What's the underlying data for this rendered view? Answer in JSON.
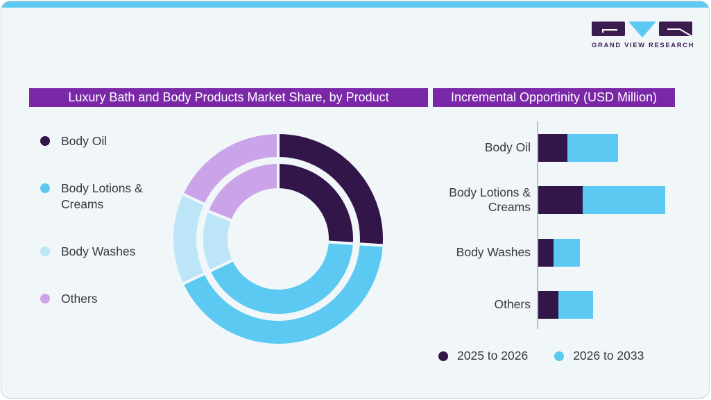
{
  "page": {
    "background": "#F1F6F9",
    "accent_bar_color": "#5FC8F1",
    "border_color": "#C9CFD3"
  },
  "logo": {
    "brand": "GRAND VIEW RESEARCH",
    "mark_color": "#3A1D4E",
    "triangle_color": "#5BC9F2"
  },
  "panels": {
    "left": {
      "title": "Luxury Bath and Body Products Market Share, by Product"
    },
    "right": {
      "title": "Incremental Opportinity (USD Million)"
    }
  },
  "palette": {
    "header_purple": "#7A28A8",
    "dark_purple": "#321549",
    "blue": "#5BC9F2",
    "pale_blue": "#BCE5F8",
    "lilac": "#CBA3E8",
    "text": "#3A3642",
    "axis": "#B9BFC6"
  },
  "legend_left": {
    "items": [
      {
        "label": "Body Oil",
        "color": "#321549",
        "icon": "legend-dot-body-oil"
      },
      {
        "label": "Body Lotions & Creams",
        "color": "#5BC9F2",
        "icon": "legend-dot-body-lotions-creams"
      },
      {
        "label": "Body Washes",
        "color": "#BCE5F8",
        "icon": "legend-dot-body-washes"
      },
      {
        "label": "Others",
        "color": "#CBA3E8",
        "icon": "legend-dot-others"
      }
    ]
  },
  "chart_data": [
    {
      "type": "pie",
      "subtype": "double-ring-donut",
      "title": "Luxury Bath and Body Products Market Share, by Product",
      "categories": [
        "Body Oil",
        "Body Lotions & Creams",
        "Body Washes",
        "Others"
      ],
      "colors": [
        "#321549",
        "#5BC9F2",
        "#BCE5F8",
        "#CBA3E8"
      ],
      "start_angle_deg": 0,
      "direction": "clockwise",
      "rings": [
        {
          "name": "outer",
          "shares_pct": [
            26,
            42,
            14,
            18
          ]
        },
        {
          "name": "inner",
          "shares_pct": [
            26,
            42,
            13,
            19
          ]
        }
      ],
      "note": "No numeric labels shown; shares estimated from arc angles"
    },
    {
      "type": "bar",
      "orientation": "horizontal",
      "stacked": true,
      "title": "Incremental Opportinity (USD Million)",
      "categories": [
        "Body Oil",
        "Body Lotions & Creams",
        "Body Washes",
        "Others"
      ],
      "series": [
        {
          "name": "2025 to 2026",
          "color": "#321549",
          "values": [
            23,
            35,
            12,
            16
          ]
        },
        {
          "name": "2026 to 2033",
          "color": "#5BC9F2",
          "values": [
            40,
            65,
            21,
            27
          ]
        }
      ],
      "value_units": "relative (axis unlabeled in figure)",
      "legend_position": "bottom",
      "legend": [
        {
          "label": "2025 to 2026",
          "color": "#321549",
          "icon": "legend-dot-2025-2026"
        },
        {
          "label": "2026 to 2033",
          "color": "#5BC9F2",
          "icon": "legend-dot-2026-2033"
        }
      ]
    }
  ]
}
